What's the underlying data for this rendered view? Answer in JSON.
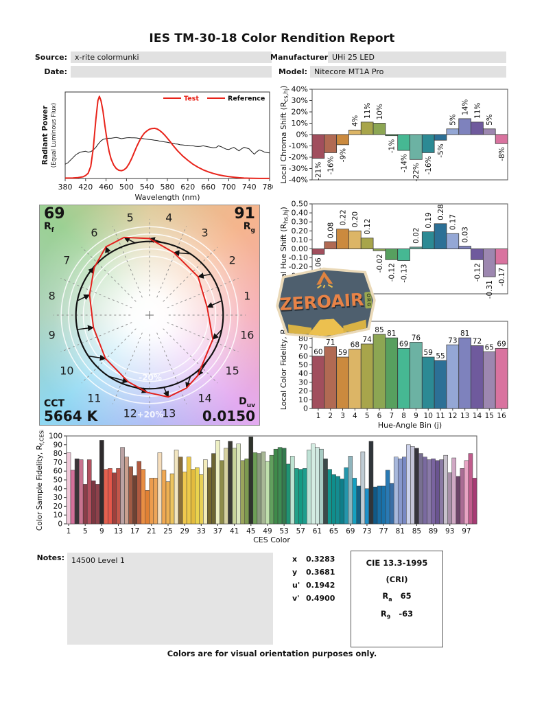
{
  "report": {
    "title": "IES TM-30-18 Color Rendition Report",
    "source_label": "Source:",
    "source_value": "x-rite colormunki",
    "date_label": "Date:",
    "date_value": "",
    "manufacturer_label": "Manufacturer:",
    "manufacturer_value": "UHi 25 LED",
    "model_label": "Model:",
    "model_value": "Nitecore MT1A Pro",
    "notes_label": "Notes:",
    "notes_value": "14500 Level 1",
    "footer": "Colors are for visual orientation purposes only."
  },
  "chromaticity": {
    "x_label": "x",
    "x": "0.3283",
    "y_label": "y",
    "y": "0.3681",
    "u_label": "u'",
    "u": "0.1942",
    "v_label": "v'",
    "v": "0.4900"
  },
  "cri": {
    "title": "CIE 13.3-1995",
    "subtitle": "(CRI)",
    "ra_base": "R",
    "ra_sub": "a",
    "ra_value": "65",
    "r9_base": "R",
    "r9_sub": "9",
    "r9_value": "-63"
  },
  "cvg_labels": {
    "rf_value": "69",
    "rf_base": "R",
    "rf_sub": "f",
    "rg_value": "91",
    "rg_base": "R",
    "rg_sub": "g",
    "cct_label": "CCT",
    "cct_value": "5664 K",
    "duv_base": "D",
    "duv_sub": "uv",
    "duv_value": "0.0150",
    "inner_ring_label": "-20%",
    "outer_ring_label": "+20%"
  },
  "watermark": {
    "text": "ZEROAIR",
    "suffix": "ORG"
  },
  "bin_colors": [
    "#a14e5d",
    "#b16a53",
    "#cb8a3e",
    "#dcb566",
    "#a8a54b",
    "#8ca653",
    "#57a05f",
    "#46b893",
    "#6cb2a3",
    "#2c8a94",
    "#2c7096",
    "#94a7d5",
    "#7e82bd",
    "#6f5a9d",
    "#9d87b0",
    "#d9739f"
  ],
  "chart_data": [
    {
      "id": "spectral",
      "type": "line",
      "xlabel": "Wavelength (nm)",
      "ylabel": "Radiant Power",
      "ylabel2": "(Equal Luminous Flux)",
      "xlim": [
        380,
        780
      ],
      "xticks": [
        380,
        420,
        460,
        500,
        540,
        580,
        620,
        660,
        700,
        740,
        780
      ],
      "legend": [
        {
          "label": "Test",
          "line_color": "#e8231a",
          "text_color": "#e8231a"
        },
        {
          "label": "Reference",
          "line_color": "#e8231a",
          "text_color": "#111111"
        }
      ],
      "series": [
        {
          "name": "Reference",
          "color": "#1a1a1a",
          "width": 1,
          "points": [
            [
              380,
              0.165
            ],
            [
              385,
              0.18
            ],
            [
              390,
              0.21
            ],
            [
              395,
              0.24
            ],
            [
              400,
              0.27
            ],
            [
              405,
              0.29
            ],
            [
              410,
              0.305
            ],
            [
              415,
              0.31
            ],
            [
              420,
              0.315
            ],
            [
              425,
              0.305
            ],
            [
              430,
              0.31
            ],
            [
              435,
              0.33
            ],
            [
              440,
              0.36
            ],
            [
              445,
              0.4
            ],
            [
              450,
              0.435
            ],
            [
              455,
              0.455
            ],
            [
              460,
              0.46
            ],
            [
              465,
              0.465
            ],
            [
              470,
              0.465
            ],
            [
              475,
              0.47
            ],
            [
              480,
              0.475
            ],
            [
              485,
              0.468
            ],
            [
              490,
              0.46
            ],
            [
              495,
              0.465
            ],
            [
              500,
              0.47
            ],
            [
              505,
              0.472
            ],
            [
              510,
              0.47
            ],
            [
              515,
              0.47
            ],
            [
              520,
              0.468
            ],
            [
              525,
              0.462
            ],
            [
              530,
              0.462
            ],
            [
              535,
              0.458
            ],
            [
              540,
              0.455
            ],
            [
              545,
              0.45
            ],
            [
              550,
              0.448
            ],
            [
              555,
              0.443
            ],
            [
              560,
              0.44
            ],
            [
              565,
              0.432
            ],
            [
              570,
              0.428
            ],
            [
              575,
              0.423
            ],
            [
              580,
              0.418
            ],
            [
              585,
              0.412
            ],
            [
              590,
              0.408
            ],
            [
              595,
              0.4
            ],
            [
              600,
              0.398
            ],
            [
              605,
              0.39
            ],
            [
              610,
              0.388
            ],
            [
              615,
              0.384
            ],
            [
              620,
              0.385
            ],
            [
              625,
              0.38
            ],
            [
              630,
              0.378
            ],
            [
              635,
              0.372
            ],
            [
              640,
              0.37
            ],
            [
              645,
              0.372
            ],
            [
              650,
              0.378
            ],
            [
              655,
              0.372
            ],
            [
              660,
              0.366
            ],
            [
              665,
              0.36
            ],
            [
              670,
              0.355
            ],
            [
              675,
              0.358
            ],
            [
              680,
              0.378
            ],
            [
              685,
              0.368
            ],
            [
              690,
              0.352
            ],
            [
              695,
              0.34
            ],
            [
              700,
              0.335
            ],
            [
              705,
              0.348
            ],
            [
              710,
              0.36
            ],
            [
              715,
              0.34
            ],
            [
              720,
              0.32
            ],
            [
              725,
              0.342
            ],
            [
              730,
              0.36
            ],
            [
              735,
              0.352
            ],
            [
              740,
              0.342
            ],
            [
              745,
              0.31
            ],
            [
              750,
              0.28
            ],
            [
              755,
              0.31
            ],
            [
              760,
              0.33
            ],
            [
              765,
              0.32
            ],
            [
              770,
              0.305
            ],
            [
              775,
              0.3
            ],
            [
              780,
              0.295
            ]
          ]
        },
        {
          "name": "Test",
          "color": "#e8231a",
          "width": 2,
          "points": [
            [
              380,
              0.005
            ],
            [
              395,
              0.006
            ],
            [
              405,
              0.01
            ],
            [
              415,
              0.02
            ],
            [
              420,
              0.035
            ],
            [
              425,
              0.06
            ],
            [
              430,
              0.14
            ],
            [
              435,
              0.35
            ],
            [
              440,
              0.68
            ],
            [
              444,
              0.9
            ],
            [
              447,
              0.95
            ],
            [
              450,
              0.9
            ],
            [
              454,
              0.78
            ],
            [
              458,
              0.6
            ],
            [
              462,
              0.44
            ],
            [
              466,
              0.31
            ],
            [
              470,
              0.225
            ],
            [
              475,
              0.155
            ],
            [
              480,
              0.115
            ],
            [
              485,
              0.095
            ],
            [
              490,
              0.09
            ],
            [
              495,
              0.1
            ],
            [
              500,
              0.125
            ],
            [
              505,
              0.17
            ],
            [
              510,
              0.23
            ],
            [
              515,
              0.3
            ],
            [
              520,
              0.37
            ],
            [
              525,
              0.43
            ],
            [
              530,
              0.485
            ],
            [
              535,
              0.525
            ],
            [
              540,
              0.55
            ],
            [
              545,
              0.57
            ],
            [
              550,
              0.578
            ],
            [
              555,
              0.58
            ],
            [
              560,
              0.572
            ],
            [
              565,
              0.555
            ],
            [
              570,
              0.53
            ],
            [
              575,
              0.5
            ],
            [
              580,
              0.465
            ],
            [
              585,
              0.43
            ],
            [
              590,
              0.39
            ],
            [
              595,
              0.355
            ],
            [
              600,
              0.32
            ],
            [
              610,
              0.26
            ],
            [
              620,
              0.21
            ],
            [
              630,
              0.165
            ],
            [
              640,
              0.13
            ],
            [
              650,
              0.1
            ],
            [
              660,
              0.077
            ],
            [
              670,
              0.058
            ],
            [
              680,
              0.043
            ],
            [
              690,
              0.031
            ],
            [
              700,
              0.022
            ],
            [
              710,
              0.015
            ],
            [
              720,
              0.009
            ],
            [
              730,
              0.005
            ],
            [
              740,
              0.003
            ],
            [
              760,
              0.001
            ],
            [
              780,
              0.001
            ]
          ]
        }
      ]
    },
    {
      "id": "chroma_shift",
      "type": "bar",
      "ylabel_parts": [
        "Local Chroma Shift (R",
        "cs,hj",
        ")"
      ],
      "ylim": [
        -40,
        40
      ],
      "ystep": 10,
      "y_format": "percent",
      "label_format": "percent",
      "bar_labels": "rotated",
      "categories": [
        1,
        2,
        3,
        4,
        5,
        6,
        7,
        8,
        9,
        10,
        11,
        12,
        13,
        14,
        15,
        16
      ],
      "values": [
        -21,
        -16,
        -9,
        4,
        11,
        10,
        -1,
        -14,
        -22,
        -16,
        -5,
        5,
        14,
        11,
        5,
        -8
      ]
    },
    {
      "id": "hue_shift",
      "type": "bar",
      "ylabel_parts": [
        "Local Hue Shift (R",
        "hs,hj",
        ")"
      ],
      "ylim": [
        -0.5,
        0.5
      ],
      "ystep": 0.1,
      "y_format": "fixed2",
      "label_format": "fixed2",
      "bar_labels": "rotated",
      "categories": [
        1,
        2,
        3,
        4,
        5,
        6,
        7,
        8,
        9,
        10,
        11,
        12,
        13,
        14,
        15,
        16
      ],
      "values": [
        -0.06,
        0.08,
        0.22,
        0.2,
        0.12,
        -0.02,
        -0.12,
        -0.13,
        0.02,
        0.19,
        0.28,
        0.17,
        0.03,
        -0.12,
        -0.31,
        -0.17
      ]
    },
    {
      "id": "local_fidelity",
      "type": "bar",
      "ylabel_parts": [
        "Local Color Fidelity, R",
        "fh,i",
        ""
      ],
      "xlabel": "Hue-Angle Bin (j)",
      "ylim": [
        0,
        100
      ],
      "ystep": 10,
      "y_format": "int",
      "bar_labels": "top",
      "xtick_mode": "index",
      "categories": [
        1,
        2,
        3,
        4,
        5,
        6,
        7,
        8,
        9,
        10,
        11,
        12,
        13,
        14,
        15,
        16
      ],
      "values": [
        60,
        71,
        59,
        68,
        74,
        85,
        81,
        69,
        76,
        59,
        55,
        73,
        81,
        72,
        65,
        69
      ]
    },
    {
      "id": "ces_fidelity",
      "type": "bar",
      "ylabel_parts": [
        "Color Sample Fidelity, R",
        "f,CESi",
        ""
      ],
      "xlabel": "CES Color",
      "ylim": [
        0,
        100
      ],
      "ystep": 10,
      "y_format": "int",
      "bar_labels": "none",
      "xtick_mode": "step4",
      "values": [
        81,
        61,
        74,
        73,
        45,
        73,
        49,
        45,
        95,
        62,
        63,
        58,
        63,
        87,
        76,
        65,
        55,
        71,
        62,
        38,
        52,
        52,
        81,
        61,
        48,
        57,
        84,
        76,
        59,
        76,
        62,
        64,
        56,
        73,
        64,
        80,
        95,
        72,
        86,
        94,
        86,
        91,
        72,
        74,
        99,
        81,
        80,
        82,
        71,
        78,
        85,
        87,
        86,
        68,
        77,
        63,
        62,
        63,
        84,
        91,
        87,
        85,
        74,
        62,
        56,
        54,
        51,
        64,
        77,
        52,
        43,
        82,
        40,
        94,
        42,
        43,
        43,
        61,
        46,
        76,
        74,
        76,
        90,
        88,
        86,
        80,
        76,
        73,
        74,
        72,
        73,
        78,
        58,
        75,
        54,
        63,
        72,
        80,
        52
      ],
      "colors": [
        "#f0c8d8",
        "#d46f9a",
        "#3b3438",
        "#c9738f",
        "#8a3e49",
        "#b34f5e",
        "#7c3741",
        "#8e414b",
        "#2f2b2d",
        "#e4614f",
        "#e4574a",
        "#9f403c",
        "#c2564a",
        "#bba3a4",
        "#caa08f",
        "#a05a44",
        "#6e4234",
        "#b05a40",
        "#e98e43",
        "#e08034",
        "#ec9c4d",
        "#eda558",
        "#f6debc",
        "#f0a852",
        "#edb052",
        "#ecc45e",
        "#f2e6c0",
        "#8a6f3a",
        "#f0c84e",
        "#ecc84a",
        "#e3bb3e",
        "#ead34e",
        "#e8cf56",
        "#f4ecba",
        "#77682f",
        "#6d6532",
        "#eef0c4",
        "#8e8c4a",
        "#d6d1a0",
        "#3a3a36",
        "#c7d49a",
        "#dde8c0",
        "#9aa45c",
        "#7c9a50",
        "#2e332c",
        "#6d9e56",
        "#88987c",
        "#a8b896",
        "#bfe0ac",
        "#62a05e",
        "#3f8a4a",
        "#3e8c52",
        "#347a4e",
        "#1f9474",
        "#bfe4d2",
        "#23a088",
        "#149a84",
        "#1d9e8e",
        "#bfe2d6",
        "#d4ece2",
        "#cfe8e0",
        "#a8ccc4",
        "#3c4a4a",
        "#12968e",
        "#0f8e8c",
        "#148c90",
        "#0f7e8a",
        "#2496ac",
        "#8fb4bc",
        "#15a0c0",
        "#136084",
        "#c0ccd4",
        "#1d90c8",
        "#30353a",
        "#105a88",
        "#186ea4",
        "#1a72aa",
        "#2a7ab4",
        "#3a6ea6",
        "#a8b8dc",
        "#8898cc",
        "#7888c4",
        "#ccd2ec",
        "#c4c4d8",
        "#36343c",
        "#787090",
        "#7a6aa0",
        "#8a7aa8",
        "#7a64a0",
        "#6a5490",
        "#8a7aa4",
        "#c8c2cc",
        "#a890a8",
        "#d0a8c4",
        "#6c4468",
        "#aa6c94",
        "#e8a4c4",
        "#c05c8c",
        "#a83a74"
      ]
    },
    {
      "id": "cvg",
      "type": "color_vector_graphic",
      "rf": 69,
      "rg": 91,
      "cct_k": 5664,
      "duv": 0.015,
      "bin_labels": [
        "1",
        "2",
        "3",
        "4",
        "5",
        "6",
        "7",
        "8",
        "9",
        "10",
        "11",
        "12",
        "13",
        "14",
        "15",
        "16"
      ],
      "chroma_shift_pct": [
        -21,
        -16,
        -9,
        4,
        11,
        10,
        -1,
        -14,
        -22,
        -16,
        -5,
        5,
        14,
        11,
        5,
        -8
      ],
      "hue_shift_rad": [
        -0.06,
        0.08,
        0.22,
        0.2,
        0.12,
        -0.02,
        -0.12,
        -0.13,
        0.02,
        0.19,
        0.28,
        0.17,
        0.03,
        -0.12,
        -0.31,
        -0.17
      ]
    }
  ]
}
